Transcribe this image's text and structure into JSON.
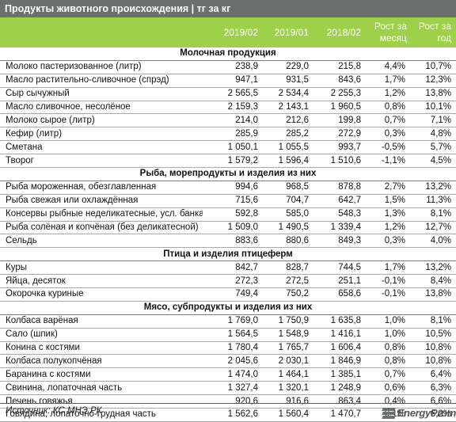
{
  "title": "Продукты животного происхождения | тг за кг",
  "columns": [
    "2019/02",
    "2019/01",
    "2018/02",
    "Рост за месяц",
    "Рост за год"
  ],
  "sections": [
    {
      "name": "Молочная продукция",
      "rows": [
        [
          "Молоко пастеризованное (литр)",
          "238,9",
          "229,0",
          "215,8",
          "4,4%",
          "10,7%"
        ],
        [
          "Масло растительно-сливочное (спрэд)",
          "947,1",
          "931,5",
          "843,6",
          "1,7%",
          "12,3%"
        ],
        [
          "Сыр сычужный",
          "2 565,5",
          "2 534,4",
          "2 255,3",
          "1,2%",
          "13,8%"
        ],
        [
          "Масло сливочное, несолёное",
          "2 159,3",
          "2 143,1",
          "1 960,5",
          "0,8%",
          "10,1%"
        ],
        [
          "Молоко сырое (литр)",
          "214,0",
          "212,6",
          "199,8",
          "0,7%",
          "7,1%"
        ],
        [
          "Кефир (литр)",
          "285,9",
          "285,2",
          "272,9",
          "0,3%",
          "4,8%"
        ],
        [
          "Сметана",
          "1 050,1",
          "1 055,5",
          "993,7",
          "-0,5%",
          "5,7%"
        ],
        [
          "Творог",
          "1 579,2",
          "1 596,4",
          "1 510,6",
          "-1,1%",
          "4,5%"
        ]
      ]
    },
    {
      "name": "Рыба, морепродукты и изделия из них",
      "rows": [
        [
          "Рыба мороженная, обезглавленная",
          "994,6",
          "968,5",
          "878,8",
          "2,7%",
          "13,2%"
        ],
        [
          "Рыба свежая или охлаждённая",
          "715,6",
          "704,7",
          "642,7",
          "1,5%",
          "11,3%"
        ],
        [
          "Консервы рыбные неделикатесные, усл. банка",
          "592,8",
          "585,0",
          "548,3",
          "1,3%",
          "8,1%"
        ],
        [
          "Рыба солёная и копчёная (без деликатесной)",
          "1 509,0",
          "1 490,5",
          "1 339,4",
          "1,2%",
          "12,7%"
        ],
        [
          "Сельдь",
          "883,6",
          "880,6",
          "849,3",
          "0,3%",
          "4,0%"
        ]
      ]
    },
    {
      "name": "Птица и изделия птицеферм",
      "rows": [
        [
          "Куры",
          "842,7",
          "828,7",
          "744,5",
          "1,7%",
          "13,2%"
        ],
        [
          "Яйца, десяток",
          "272,3",
          "272,5",
          "251,1",
          "-0,1%",
          "8,4%"
        ],
        [
          "Окорочка куриные",
          "749,4",
          "750,2",
          "658,6",
          "-0,1%",
          "13,8%"
        ]
      ]
    },
    {
      "name": "Мясо, субпродукты и изделия из них",
      "rows": [
        [
          "Колбаса варёная",
          "1 769,0",
          "1 750,9",
          "1 635,8",
          "1,0%",
          "8,1%"
        ],
        [
          "Сало (шпик)",
          "1 564,5",
          "1 548,9",
          "1 416,1",
          "1,0%",
          "10,5%"
        ],
        [
          "Конина с костями",
          "1 780,4",
          "1 765,7",
          "1 606,4",
          "0,8%",
          "10,8%"
        ],
        [
          "Колбаса полукопчёная",
          "2 045,6",
          "2 030,1",
          "1 846,9",
          "0,8%",
          "10,8%"
        ],
        [
          "Баранина с костями",
          "1 474,0",
          "1 464,1",
          "1 385,1",
          "0,7%",
          "6,4%"
        ],
        [
          "Свинина, лопаточная часть",
          "1 327,4",
          "1 320,1",
          "1 248,9",
          "0,6%",
          "6,3%"
        ],
        [
          "Печень говяжья",
          "920,6",
          "916,6",
          "863,4",
          "0,4%",
          "6,6%"
        ],
        [
          "Говядина, лопаточно-грудная часть",
          "1 562,6",
          "1 560,4",
          "1 470,7",
          "0,1%",
          "6,2%"
        ]
      ]
    }
  ],
  "source": "Источник: КС МНЭ РК",
  "logo": "EnergyProm"
}
